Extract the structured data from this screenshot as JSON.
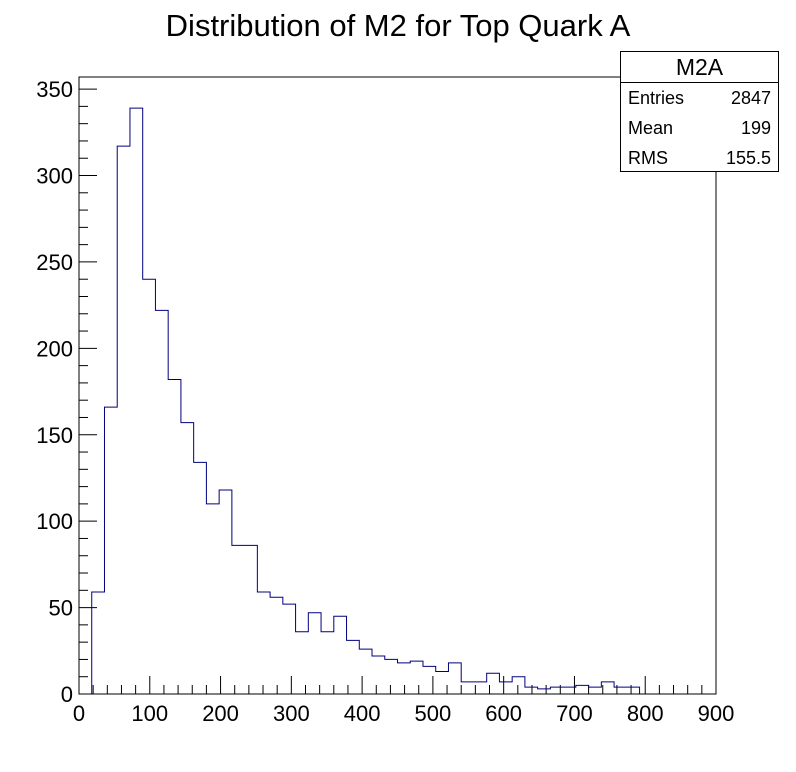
{
  "chart_data": {
    "type": "histogram",
    "title": "Distribution of M2 for Top Quark A",
    "xlabel": "",
    "ylabel": "",
    "xlim": [
      0,
      900
    ],
    "ylim": [
      0,
      357
    ],
    "bin_width": 18,
    "x_ticks": [
      0,
      100,
      200,
      300,
      400,
      500,
      600,
      700,
      800,
      900
    ],
    "y_ticks": [
      0,
      50,
      100,
      150,
      200,
      250,
      300,
      350
    ],
    "values": [
      0,
      59,
      166,
      317,
      339,
      240,
      222,
      182,
      157,
      134,
      110,
      118,
      86,
      86,
      59,
      56,
      52,
      36,
      47,
      36,
      45,
      31,
      26,
      22,
      20,
      18,
      19,
      16,
      13,
      18,
      7,
      7,
      12,
      7,
      10,
      4,
      3,
      4,
      4,
      5,
      4,
      7,
      4,
      4
    ],
    "line_color": "#00007f",
    "stats": {
      "name": "M2A",
      "rows": [
        {
          "label": "Entries",
          "value": "2847"
        },
        {
          "label": "Mean",
          "value": "199"
        },
        {
          "label": "RMS",
          "value": "155.5"
        }
      ]
    }
  }
}
